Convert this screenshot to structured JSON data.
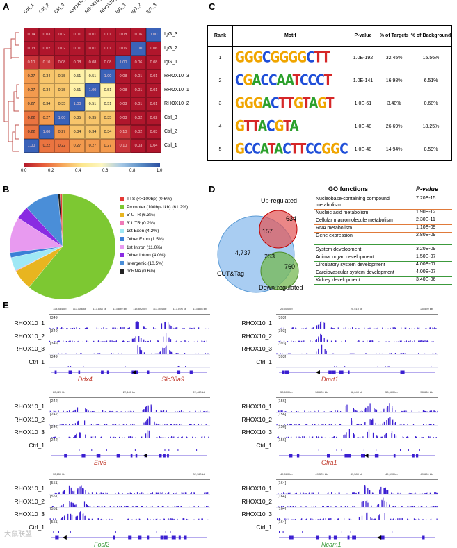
{
  "panels": {
    "a": "A",
    "b": "B",
    "c": "C",
    "d": "D",
    "e": "E"
  },
  "heatmap": {
    "col_labels": [
      "Ctrl_1",
      "Ctrl_2",
      "Ctrl_3",
      "RHOX10_2",
      "RHOX10_1",
      "RHOX10_3",
      "IgG_1",
      "IgG_2",
      "IgG_3"
    ],
    "row_labels": [
      "IgG_3",
      "IgG_2",
      "IgG_1",
      "RHOX10_3",
      "RHOX10_1",
      "RHOX10_2",
      "Ctrl_3",
      "Ctrl_2",
      "Ctrl_1"
    ],
    "values": [
      [
        "0.04",
        "0.03",
        "0.02",
        "0.01",
        "0.01",
        "0.01",
        "0.08",
        "0.06",
        "1.00"
      ],
      [
        "0.03",
        "0.02",
        "0.02",
        "0.01",
        "0.01",
        "0.01",
        "0.06",
        "1.00",
        "0.06"
      ],
      [
        "0.10",
        "0.10",
        "0.08",
        "0.08",
        "0.08",
        "0.08",
        "1.00",
        "0.06",
        "0.08"
      ],
      [
        "0.27",
        "0.34",
        "0.35",
        "0.51",
        "0.51",
        "1.00",
        "0.08",
        "0.01",
        "0.01"
      ],
      [
        "0.27",
        "0.34",
        "0.35",
        "0.51",
        "1.00",
        "0.51",
        "0.08",
        "0.01",
        "0.01"
      ],
      [
        "0.27",
        "0.34",
        "0.35",
        "1.00",
        "0.51",
        "0.51",
        "0.08",
        "0.01",
        "0.01"
      ],
      [
        "0.22",
        "0.27",
        "1.00",
        "0.35",
        "0.35",
        "0.35",
        "0.08",
        "0.02",
        "0.02"
      ],
      [
        "0.22",
        "1.00",
        "0.27",
        "0.34",
        "0.34",
        "0.34",
        "0.10",
        "0.02",
        "0.03"
      ],
      [
        "1.00",
        "0.22",
        "0.22",
        "0.27",
        "0.27",
        "0.27",
        "0.10",
        "0.03",
        "0.04"
      ]
    ],
    "colorbar_ticks": [
      "0.0",
      "0.2",
      "0.4",
      "0.6",
      "0.8",
      "1.0"
    ]
  },
  "chart_data": {
    "type": "pie",
    "title": "Peak annotation",
    "categories": [
      "TTS (<=100bp)",
      "Promoter (100bp-1kb)",
      "5' UTR",
      "3' UTR",
      "1st Exon",
      "Other Exon",
      "1st Intron",
      "Other Intron",
      "Intergenic",
      "ncRNA"
    ],
    "values": [
      0.6,
      61.2,
      6.3,
      0.2,
      4.2,
      1.5,
      11.0,
      4.0,
      10.5,
      0.6
    ],
    "legend_labels": [
      "TTS (<=100bp) (0.6%)",
      "Promoter (100bp-1kb) (61.2%)",
      "5' UTR (6.3%)",
      "3' UTR (0.2%)",
      "1st Exon (4.2%)",
      "Other Exon (1.5%)",
      "1st Intron (11.0%)",
      "Other Intron (4.0%)",
      "Intergenic (10.5%)",
      "ncRNA (0.6%)"
    ],
    "colors": [
      "#e53935",
      "#7dc832",
      "#e8b520",
      "#f07ab8",
      "#9ee8f5",
      "#3a7fd6",
      "#e89af0",
      "#8a2be2",
      "#4a8ed8",
      "#222222"
    ]
  },
  "motif_table": {
    "headers": [
      "Rank",
      "Motif",
      "P-value",
      "% of Targets",
      "% of Background"
    ],
    "rows": [
      {
        "rank": "1",
        "motif": "GGGCGGGGCTT",
        "p": "1.0E-192",
        "targets": "32.45%",
        "background": "15.56%"
      },
      {
        "rank": "2",
        "motif": "CGACCAATCCCT",
        "p": "1.0E-141",
        "targets": "16.98%",
        "background": "6.51%"
      },
      {
        "rank": "3",
        "motif": "GGGACTTGTAGT",
        "p": "1.0E-61",
        "targets": "3.40%",
        "background": "0.68%"
      },
      {
        "rank": "4",
        "motif": "GTTACGTA",
        "p": "1.0E-48",
        "targets": "26.69%",
        "background": "18.25%"
      },
      {
        "rank": "5",
        "motif": "GCCATACTTCCGGC",
        "p": "1.0E-48",
        "targets": "14.94%",
        "background": "8.59%"
      }
    ]
  },
  "venn": {
    "up_label": "Up-regulated",
    "down_label": "Down-regulated",
    "cut_label": "CUT&Tag",
    "cut_only": "4,737",
    "up_only": "634",
    "up_overlap": "157",
    "down_only": "760",
    "down_overlap": "253"
  },
  "go": {
    "header_fn": "GO functions",
    "header_p": "P-value",
    "up_terms": [
      {
        "term": "Nucleobase-containing compound metabolism",
        "p": "7.20E-15"
      },
      {
        "term": "Nucleic acid metabolism",
        "p": "1.90E-12"
      },
      {
        "term": "Cellular macromolecule metabolism",
        "p": "2.30E-11"
      },
      {
        "term": "RNA metabolism",
        "p": "1.10E-09"
      },
      {
        "term": "Gene expression",
        "p": "2.80E-09"
      }
    ],
    "down_terms": [
      {
        "term": "System development",
        "p": "3.20E-09"
      },
      {
        "term": "Animal organ development",
        "p": "1.50E-07"
      },
      {
        "term": "Circulatory system development",
        "p": "4.00E-07"
      },
      {
        "term": "Cardiovascular system development",
        "p": "4.00E-07"
      },
      {
        "term": "Kidney development",
        "p": "3.40E-06"
      }
    ]
  },
  "tracks": {
    "sample_labels": [
      "RHOX10_1",
      "RHOX10_2",
      "RHOX10_3",
      "Ctrl_1"
    ],
    "loci": [
      {
        "genes": [
          "Ddx4",
          "Slc38a9"
        ],
        "scale": "[349]",
        "coords": [
          "113,884 kb",
          "113,886 kb",
          "113,888 kb",
          "113,890 kb",
          "113,892 kb",
          "113,894 kb",
          "113,896 kb",
          "113,898 kb"
        ]
      },
      {
        "genes": [
          "Dmrt1"
        ],
        "scale": "[393]",
        "coords": [
          "25,500 kb",
          "25,510 kb",
          "25,520 kb"
        ]
      },
      {
        "genes": [
          "Etv5"
        ],
        "scale": "[242]",
        "coords": [
          "22,420 kb",
          "22,440 kb",
          "22,460 kb"
        ]
      },
      {
        "genes": [
          "Gfra1"
        ],
        "scale": "[156]",
        "coords": [
          "58,600 kb",
          "58,620 kb",
          "58,640 kb",
          "58,660 kb",
          "58,680 kb"
        ]
      },
      {
        "genes": [
          "Fosl2"
        ],
        "scale": "[551]",
        "coords": [
          "32,150 kb",
          "32,160 kb"
        ]
      },
      {
        "genes": [
          "Ncam1"
        ],
        "scale": "[164]",
        "coords": [
          "49,560 kb",
          "49,570 kb",
          "49,580 kb",
          "49,590 kb",
          "49,600 kb"
        ]
      }
    ]
  },
  "watermark": "大鼠联盟"
}
